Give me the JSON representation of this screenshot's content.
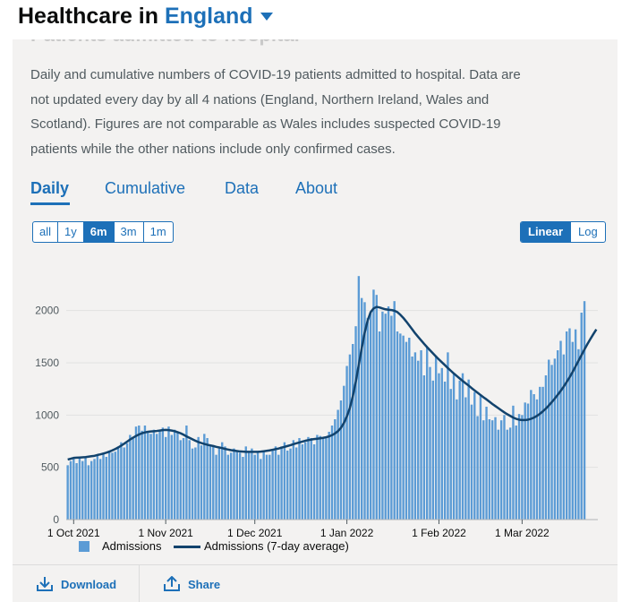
{
  "header": {
    "title_prefix": "Healthcare in",
    "area": "England"
  },
  "card": {
    "ghost_title": "Patients admitted to hospital",
    "description": "Daily and cumulative numbers of COVID-19 patients admitted to hospital. Data are not updated every day by all 4 nations (England, Northern Ireland, Wales and Scotland). Figures are not comparable as Wales includes suspected COVID-19 patients while the other nations include only confirmed cases."
  },
  "tabs": [
    {
      "label": "Daily",
      "active": true
    },
    {
      "label": "Cumulative",
      "active": false
    },
    {
      "label": "Data",
      "active": false
    },
    {
      "label": "About",
      "active": false
    }
  ],
  "ranges": [
    {
      "label": "all",
      "active": false
    },
    {
      "label": "1y",
      "active": false
    },
    {
      "label": "6m",
      "active": true
    },
    {
      "label": "3m",
      "active": false
    },
    {
      "label": "1m",
      "active": false
    }
  ],
  "scales": [
    {
      "label": "Linear",
      "active": true
    },
    {
      "label": "Log",
      "active": false
    }
  ],
  "footer": {
    "download_label": "Download",
    "share_label": "Share"
  },
  "colors": {
    "bar": "#5b9bd5",
    "line": "#12436d",
    "accent": "#1d70b8",
    "grid": "#e1e1e1"
  },
  "chart_data": {
    "type": "bar",
    "title": "",
    "xlabel": "",
    "ylabel": "",
    "ylim": [
      0,
      2400
    ],
    "yticks": [
      0,
      500,
      1000,
      1500,
      2000
    ],
    "start_date": "2021-09-29",
    "end_date": "2022-03-26",
    "xticks": [
      {
        "date": "2021-10-01",
        "label": "1 Oct 2021"
      },
      {
        "date": "2021-11-01",
        "label": "1 Nov 2021"
      },
      {
        "date": "2021-12-01",
        "label": "1 Dec 2021"
      },
      {
        "date": "2022-01-01",
        "label": "1 Jan 2022"
      },
      {
        "date": "2022-02-01",
        "label": "1 Feb 2022"
      },
      {
        "date": "2022-03-01",
        "label": "1 Mar 2022"
      }
    ],
    "grid": true,
    "legend": "bottom",
    "series": [
      {
        "name": "Admissions",
        "kind": "bar",
        "values": [
          520,
          560,
          590,
          540,
          600,
          560,
          600,
          520,
          560,
          580,
          620,
          580,
          640,
          600,
          660,
          640,
          650,
          700,
          740,
          690,
          730,
          810,
          780,
          890,
          900,
          850,
          900,
          830,
          820,
          860,
          820,
          860,
          880,
          790,
          890,
          810,
          860,
          840,
          760,
          780,
          900,
          760,
          680,
          690,
          790,
          710,
          820,
          780,
          720,
          700,
          620,
          680,
          740,
          700,
          620,
          640,
          680,
          660,
          640,
          600,
          700,
          640,
          680,
          620,
          640,
          580,
          660,
          620,
          620,
          660,
          700,
          620,
          700,
          740,
          660,
          680,
          760,
          690,
          780,
          720,
          740,
          790,
          780,
          720,
          810,
          800,
          780,
          780,
          840,
          900,
          960,
          1050,
          1140,
          1280,
          1470,
          1580,
          1680,
          1850,
          2330,
          2120,
          2080,
          1930,
          1980,
          2200,
          2150,
          1800,
          1990,
          1970,
          2040,
          1950,
          2090,
          1800,
          1780,
          1760,
          1700,
          1740,
          1560,
          1600,
          1520,
          1620,
          1380,
          1650,
          1460,
          1330,
          1570,
          1400,
          1450,
          1320,
          1600,
          1250,
          1390,
          1150,
          1330,
          1400,
          1170,
          1340,
          1100,
          1220,
          990,
          1200,
          950,
          1080,
          960,
          950,
          980,
          860,
          950,
          1000,
          860,
          880,
          1090,
          900,
          1010,
          1000,
          1120,
          1110,
          1240,
          1200,
          1150,
          1270,
          1270,
          1380,
          1530,
          1480,
          1540,
          1620,
          1710,
          1580,
          1800,
          1830,
          1700,
          1820,
          1630,
          1980,
          2090
        ]
      },
      {
        "name": "Admissions (7-day average)",
        "kind": "line",
        "values": [
          575,
          582,
          590,
          592,
          594,
          596,
          598,
          602,
          606,
          610,
          618,
          624,
          632,
          640,
          650,
          662,
          675,
          690,
          708,
          726,
          746,
          766,
          784,
          800,
          814,
          826,
          834,
          840,
          843,
          845,
          848,
          852,
          856,
          858,
          856,
          852,
          846,
          836,
          826,
          812,
          796,
          782,
          768,
          754,
          742,
          732,
          724,
          716,
          710,
          704,
          696,
          690,
          684,
          676,
          670,
          664,
          660,
          656,
          652,
          650,
          648,
          648,
          648,
          648,
          648,
          650,
          654,
          658,
          662,
          668,
          674,
          680,
          688,
          696,
          704,
          712,
          722,
          730,
          738,
          746,
          754,
          760,
          766,
          770,
          774,
          778,
          782,
          788,
          796,
          808,
          824,
          846,
          878,
          924,
          988,
          1068,
          1180,
          1320,
          1480,
          1640,
          1790,
          1905,
          1985,
          2020,
          2035,
          2030,
          2020,
          2012,
          2008,
          2005,
          1998,
          1985,
          1960,
          1930,
          1895,
          1858,
          1820,
          1782,
          1748,
          1715,
          1682,
          1650,
          1620,
          1590,
          1560,
          1532,
          1505,
          1478,
          1450,
          1424,
          1398,
          1374,
          1350,
          1326,
          1304,
          1282,
          1258,
          1236,
          1214,
          1192,
          1170,
          1150,
          1128,
          1106,
          1086,
          1066,
          1046,
          1026,
          1008,
          992,
          976,
          964,
          956,
          952,
          952,
          956,
          964,
          976,
          992,
          1012,
          1036,
          1062,
          1092,
          1124,
          1158,
          1194,
          1232,
          1272,
          1316,
          1362,
          1412,
          1466,
          1520,
          1574,
          1628,
          1680,
          1728,
          1775,
          1820
        ]
      }
    ]
  }
}
